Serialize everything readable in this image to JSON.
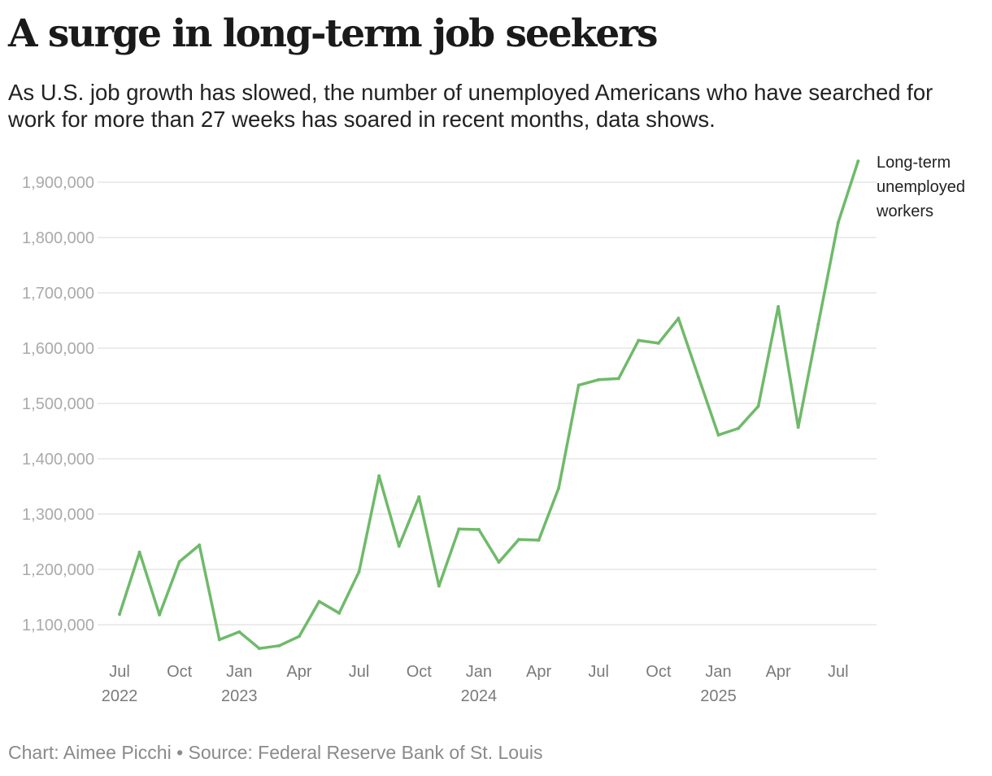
{
  "headline": "A surge in long-term job seekers",
  "subtitle": "As U.S. job growth has slowed, the number of unemployed Americans who have searched for work for more than 27 weeks has soared in recent months, data shows.",
  "footer": "Chart: Aimee Picchi • Source: Federal Reserve Bank of St. Louis",
  "colors": {
    "line": "#6fba6a",
    "grid": "#e6e6e6"
  },
  "chart_data": {
    "type": "line",
    "title": "A surge in long-term job seekers",
    "xlabel": "",
    "ylabel": "",
    "ylim": [
      1040000,
      1940000
    ],
    "yticks": [
      1100000,
      1200000,
      1300000,
      1400000,
      1500000,
      1600000,
      1700000,
      1800000,
      1900000
    ],
    "ytick_labels": [
      "1,100,000",
      "1,200,000",
      "1,300,000",
      "1,400,000",
      "1,500,000",
      "1,600,000",
      "1,700,000",
      "1,800,000",
      "1,900,000"
    ],
    "xticks": [
      {
        "index": 0,
        "label": "Jul",
        "year": "2022"
      },
      {
        "index": 3,
        "label": "Oct",
        "year": ""
      },
      {
        "index": 6,
        "label": "Jan",
        "year": "2023"
      },
      {
        "index": 9,
        "label": "Apr",
        "year": ""
      },
      {
        "index": 12,
        "label": "Jul",
        "year": ""
      },
      {
        "index": 15,
        "label": "Oct",
        "year": ""
      },
      {
        "index": 18,
        "label": "Jan",
        "year": "2024"
      },
      {
        "index": 21,
        "label": "Apr",
        "year": ""
      },
      {
        "index": 24,
        "label": "Jul",
        "year": ""
      },
      {
        "index": 27,
        "label": "Oct",
        "year": ""
      },
      {
        "index": 30,
        "label": "Jan",
        "year": "2025"
      },
      {
        "index": 33,
        "label": "Apr",
        "year": ""
      },
      {
        "index": 36,
        "label": "Jul",
        "year": ""
      }
    ],
    "series": [
      {
        "name": "Long-term unemployed workers",
        "label_lines": [
          "Long-term",
          "unemployed",
          "workers"
        ],
        "start": "2022-07",
        "values": [
          1119000,
          1231000,
          1118000,
          1214000,
          1244000,
          1073000,
          1087000,
          1057000,
          1062000,
          1079000,
          1142000,
          1121000,
          1196000,
          1369000,
          1242000,
          1331000,
          1170000,
          1273000,
          1272000,
          1213000,
          1254000,
          1253000,
          1347000,
          1533000,
          1543000,
          1545000,
          1614000,
          1609000,
          1654000,
          1548000,
          1443000,
          1455000,
          1495000,
          1675000,
          1457000,
          1643000,
          1827000,
          1938000
        ]
      }
    ],
    "grid": true
  }
}
